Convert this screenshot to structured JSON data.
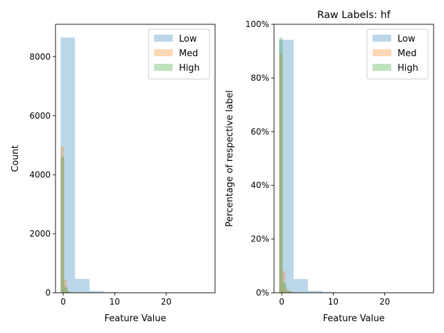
{
  "figure": {
    "colors": {
      "Low": "#1f77b4",
      "Med": "#ff7f0e",
      "High": "#2ca02c"
    },
    "bar_opacity": 0.3
  },
  "chart_data": [
    {
      "type": "bar",
      "title": "",
      "xlabel": "Feature Value",
      "ylabel": "Count",
      "xlim": [
        -1.5,
        29.5
      ],
      "ylim": [
        0,
        9100
      ],
      "xticks": [
        0,
        10,
        20
      ],
      "xtick_labels": [
        "0",
        "10",
        "20"
      ],
      "yticks": [
        0,
        2000,
        4000,
        6000,
        8000
      ],
      "ytick_labels": [
        "0",
        "2000",
        "4000",
        "6000",
        "8000"
      ],
      "legend_position": "top-right",
      "grid": false,
      "series": [
        {
          "name": "Low",
          "bin_edges": [
            -0.5,
            2.3,
            5.1,
            7.9,
            10.7,
            13.5,
            16.3,
            19.1,
            21.9,
            24.7,
            27.5
          ],
          "values": [
            8650,
            470,
            60,
            25,
            8,
            4,
            2,
            1,
            1,
            1
          ]
        },
        {
          "name": "Med",
          "bin_edges": [
            -0.5,
            0.1,
            0.7,
            1.3,
            1.9,
            2.5,
            3.1,
            3.7,
            4.3,
            4.9,
            5.5
          ],
          "values": [
            4950,
            450,
            60,
            20,
            8,
            4,
            2,
            1,
            1,
            1
          ]
        },
        {
          "name": "High",
          "bin_edges": [
            -0.5,
            0.2,
            0.9,
            1.6,
            2.3,
            3.0,
            3.7,
            4.4,
            5.1,
            5.8,
            6.5
          ],
          "values": [
            4600,
            180,
            30,
            10,
            5,
            3,
            2,
            1,
            1,
            1
          ]
        }
      ]
    },
    {
      "type": "bar",
      "title": "Raw Labels: hf",
      "xlabel": "Feature Value",
      "ylabel": "Percentage of respective label",
      "xlim": [
        -1.5,
        29.5
      ],
      "ylim": [
        0,
        100
      ],
      "xticks": [
        0,
        10,
        20
      ],
      "xtick_labels": [
        "0",
        "10",
        "20"
      ],
      "yticks": [
        0,
        20,
        40,
        60,
        80,
        100
      ],
      "ytick_labels": [
        "0%",
        "20%",
        "40%",
        "60%",
        "80%",
        "100%"
      ],
      "legend_position": "top-right",
      "grid": false,
      "series": [
        {
          "name": "Low",
          "bin_edges": [
            -0.5,
            2.3,
            5.1,
            7.9,
            10.7,
            13.5,
            16.3,
            19.1,
            21.9,
            24.7,
            27.5
          ],
          "values": [
            94.2,
            5.1,
            0.7,
            0.3,
            0.1,
            0.05,
            0.03,
            0.02,
            0.01,
            0.01
          ]
        },
        {
          "name": "Med",
          "bin_edges": [
            -0.5,
            0.1,
            0.7,
            1.3,
            1.9,
            2.5,
            3.1,
            3.7,
            4.3,
            4.9,
            5.5
          ],
          "values": [
            89.0,
            8.0,
            1.5,
            0.6,
            0.3,
            0.2,
            0.1,
            0.1,
            0.05,
            0.05
          ]
        },
        {
          "name": "High",
          "bin_edges": [
            -0.5,
            0.2,
            0.9,
            1.6,
            2.3,
            3.0,
            3.7,
            4.4,
            5.1,
            5.8,
            6.5
          ],
          "values": [
            95.0,
            3.7,
            0.7,
            0.3,
            0.1,
            0.1,
            0.05,
            0.03,
            0.01,
            0.01
          ]
        }
      ]
    }
  ]
}
